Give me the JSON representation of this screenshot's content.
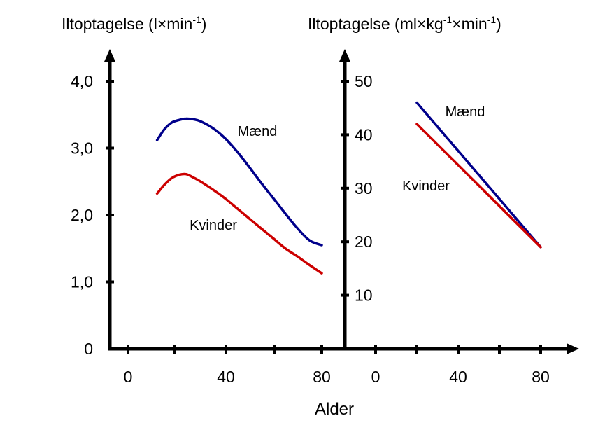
{
  "xlabel": "Alder",
  "chart_data": [
    {
      "type": "line",
      "title": {
        "pre": "Iltoptagelse (l",
        "times1": "×",
        "mid": "min",
        "sup1": "-1",
        "post": ")"
      },
      "xticks": [
        "0",
        "40",
        "80"
      ],
      "xlim": [
        -10,
        85
      ],
      "yticks": [
        "0",
        "1,0",
        "2,0",
        "3,0",
        "4,0"
      ],
      "ylim": [
        0,
        4.0
      ],
      "series": [
        {
          "name": "Mænd",
          "color": "#00008b",
          "x": [
            12,
            15,
            18,
            21,
            24,
            27,
            30,
            35,
            40,
            45,
            50,
            55,
            60,
            65,
            70,
            75,
            80
          ],
          "y": [
            3.12,
            3.28,
            3.38,
            3.42,
            3.44,
            3.43,
            3.4,
            3.3,
            3.15,
            2.95,
            2.72,
            2.48,
            2.25,
            2.02,
            1.8,
            1.62,
            1.55
          ]
        },
        {
          "name": "Kvinder",
          "color": "#cc0000",
          "x": [
            12,
            15,
            18,
            21,
            24,
            27,
            30,
            35,
            40,
            45,
            50,
            55,
            60,
            65,
            70,
            75,
            80
          ],
          "y": [
            2.32,
            2.45,
            2.55,
            2.6,
            2.61,
            2.56,
            2.5,
            2.38,
            2.25,
            2.1,
            1.95,
            1.8,
            1.65,
            1.5,
            1.38,
            1.25,
            1.13
          ]
        }
      ]
    },
    {
      "type": "line",
      "title": {
        "pre": "Iltoptagelse (ml",
        "times1": "×",
        "mid1": "kg",
        "sup1": "-1",
        "times2": "×",
        "mid2": "min",
        "sup2": "-1",
        "post": ")"
      },
      "xticks": [
        "0",
        "40",
        "80"
      ],
      "xlim": [
        -15,
        100
      ],
      "yticks": [
        "10",
        "20",
        "30",
        "40",
        "50"
      ],
      "ylim": [
        0,
        50
      ],
      "series": [
        {
          "name": "Mænd",
          "color": "#00008b",
          "x": [
            20,
            80
          ],
          "y": [
            46,
            19
          ]
        },
        {
          "name": "Kvinder",
          "color": "#cc0000",
          "x": [
            20,
            80
          ],
          "y": [
            42,
            19
          ]
        }
      ]
    }
  ]
}
